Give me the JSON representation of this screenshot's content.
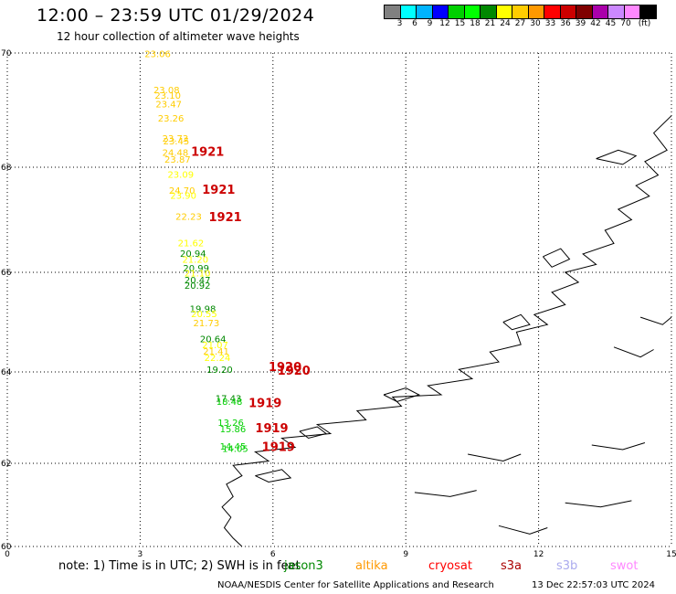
{
  "header": {
    "title": "12:00 – 23:59 UTC 01/29/2024",
    "subtitle": "12 hour collection of altimeter wave heights"
  },
  "colorbar": {
    "colors": [
      "#808080",
      "#00ffff",
      "#00b4ff",
      "#0000ff",
      "#00d000",
      "#00ff00",
      "#008800",
      "#ffff00",
      "#ffcc00",
      "#ff9900",
      "#ff0000",
      "#cc0000",
      "#800000",
      "#aa00aa",
      "#cc88ff",
      "#ff88ff",
      "#000000"
    ],
    "labels": [
      "3",
      "6",
      "9",
      "12",
      "15",
      "18",
      "21",
      "24",
      "27",
      "30",
      "33",
      "36",
      "39",
      "42",
      "45",
      "70",
      "(ft)"
    ]
  },
  "map": {
    "lat_labels": [
      "70",
      "68",
      "66",
      "64",
      "62",
      "60"
    ],
    "lon_labels": [
      "0",
      "3",
      "6",
      "9",
      "12",
      "15"
    ],
    "observations": [
      {
        "text": "23.06",
        "lat": 69.93,
        "lon": 3.1,
        "color": "#ffcc00"
      },
      {
        "text": "23.08",
        "lat": 69.3,
        "lon": 3.3,
        "color": "#ffcc00"
      },
      {
        "text": "23.10",
        "lat": 69.2,
        "lon": 3.33,
        "color": "#ffcc00"
      },
      {
        "text": "23.47",
        "lat": 69.05,
        "lon": 3.35,
        "color": "#ffcc00"
      },
      {
        "text": "23.26",
        "lat": 68.8,
        "lon": 3.4,
        "color": "#ffcc00"
      },
      {
        "text": "23.73",
        "lat": 68.45,
        "lon": 3.5,
        "color": "#ffcc00"
      },
      {
        "text": "23.45",
        "lat": 68.4,
        "lon": 3.52,
        "color": "#ffcc00"
      },
      {
        "text": "24.48",
        "lat": 68.2,
        "lon": 3.5,
        "color": "#ffcc00"
      },
      {
        "text": "23.87",
        "lat": 68.08,
        "lon": 3.55,
        "color": "#ffcc00"
      },
      {
        "text": "23.09",
        "lat": 67.8,
        "lon": 3.62,
        "color": "#ffff00"
      },
      {
        "text": "24.70",
        "lat": 67.5,
        "lon": 3.65,
        "color": "#ffcc00"
      },
      {
        "text": "23.90",
        "lat": 67.4,
        "lon": 3.68,
        "color": "#ffff00"
      },
      {
        "text": "22.23",
        "lat": 67.0,
        "lon": 3.8,
        "color": "#ffcc00"
      },
      {
        "text": "21.62",
        "lat": 66.5,
        "lon": 3.85,
        "color": "#ffff00"
      },
      {
        "text": "20.94",
        "lat": 66.3,
        "lon": 3.9,
        "color": "#008800"
      },
      {
        "text": "21.20",
        "lat": 66.18,
        "lon": 3.95,
        "color": "#ffff00"
      },
      {
        "text": "20.99",
        "lat": 66.02,
        "lon": 3.97,
        "color": "#008800"
      },
      {
        "text": "21.10",
        "lat": 65.92,
        "lon": 4.0,
        "color": "#ffff00"
      },
      {
        "text": "20.47",
        "lat": 65.78,
        "lon": 4.0,
        "color": "#008800"
      },
      {
        "text": "20.92",
        "lat": 65.67,
        "lon": 4.0,
        "color": "#008800"
      },
      {
        "text": "19.98",
        "lat": 65.2,
        "lon": 4.12,
        "color": "#008800"
      },
      {
        "text": "20.55",
        "lat": 65.1,
        "lon": 4.15,
        "color": "#ffff00"
      },
      {
        "text": "21.73",
        "lat": 64.92,
        "lon": 4.2,
        "color": "#ffcc00"
      },
      {
        "text": "20.64",
        "lat": 64.6,
        "lon": 4.35,
        "color": "#008800"
      },
      {
        "text": "21.07",
        "lat": 64.48,
        "lon": 4.4,
        "color": "#ffff00"
      },
      {
        "text": "21.41",
        "lat": 64.35,
        "lon": 4.42,
        "color": "#ffcc00"
      },
      {
        "text": "22.24",
        "lat": 64.22,
        "lon": 4.45,
        "color": "#ffff00"
      },
      {
        "text": "19.20",
        "lat": 63.98,
        "lon": 4.5,
        "color": "#008800"
      },
      {
        "text": "17.43",
        "lat": 63.35,
        "lon": 4.7,
        "color": "#008800"
      },
      {
        "text": "18.48",
        "lat": 63.28,
        "lon": 4.72,
        "color": "#00d000"
      },
      {
        "text": "13.26",
        "lat": 62.82,
        "lon": 4.75,
        "color": "#00d000"
      },
      {
        "text": "15.86",
        "lat": 62.68,
        "lon": 4.8,
        "color": "#00d000"
      },
      {
        "text": "14.45",
        "lat": 62.3,
        "lon": 4.8,
        "color": "#00d000"
      },
      {
        "text": "14.05",
        "lat": 62.25,
        "lon": 4.85,
        "color": "#00d000"
      }
    ],
    "passes": [
      {
        "text": "1921",
        "lat": 68.2,
        "lon": 4.15,
        "color": "#cc0000"
      },
      {
        "text": "1921",
        "lat": 67.5,
        "lon": 4.4,
        "color": "#cc0000"
      },
      {
        "text": "1921",
        "lat": 66.97,
        "lon": 4.55,
        "color": "#cc0000"
      },
      {
        "text": "1920",
        "lat": 64.02,
        "lon": 5.9,
        "color": "#cc0000"
      },
      {
        "text": "1920",
        "lat": 63.94,
        "lon": 6.1,
        "color": "#cc0000"
      },
      {
        "text": "1919",
        "lat": 63.23,
        "lon": 5.45,
        "color": "#cc0000"
      },
      {
        "text": "1919",
        "lat": 62.68,
        "lon": 5.6,
        "color": "#cc0000"
      },
      {
        "text": "1919",
        "lat": 62.27,
        "lon": 5.75,
        "color": "#cc0000"
      }
    ]
  },
  "footer": {
    "note": "note:  1) Time is in UTC; 2) SWH is in feet",
    "legend": [
      {
        "label": "jason3",
        "color": "#008800"
      },
      {
        "label": "altika",
        "color": "#ff9900"
      },
      {
        "label": "cryosat",
        "color": "#ff0000"
      },
      {
        "label": "s3a",
        "color": "#aa0000"
      },
      {
        "label": "s3b",
        "color": "#aaaaee"
      },
      {
        "label": "swot",
        "color": "#ff88ff"
      }
    ],
    "credit": "NOAA/NESDIS Center for Satellite Applications and Research",
    "timestamp": "13 Dec 22:57:03 UTC 2024"
  }
}
